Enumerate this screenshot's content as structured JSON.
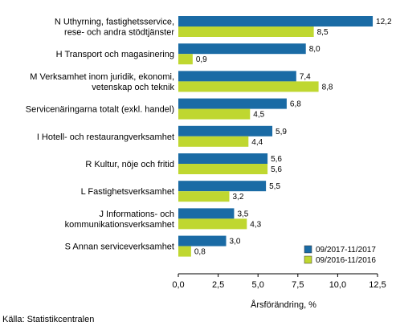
{
  "chart_data": {
    "type": "bar",
    "orientation": "horizontal",
    "categories": [
      "N Uthyrning, fastighetsservice,\nrese- och andra stödtjänster",
      "H Transport och magasinering",
      "M Verksamhet inom juridik, ekonomi,\nvetenskap och teknik",
      "Servicenäringarna totalt (exkl. handel)",
      "I Hotell- och restaurangverksamhet",
      "R Kultur, nöje och fritid",
      "L Fastighetsverksamhet",
      "J Informations- och\nkommunikationsverksamhet",
      "S Annan serviceverksamhet"
    ],
    "series": [
      {
        "name": "09/2017-11/2017",
        "color": "#1a6ba5",
        "values": [
          12.2,
          8.0,
          7.4,
          6.8,
          5.9,
          5.6,
          5.5,
          3.5,
          3.0
        ],
        "labels": [
          "12,2",
          "8,0",
          "7,4",
          "6,8",
          "5,9",
          "5,6",
          "5,5",
          "3,5",
          "3,0"
        ]
      },
      {
        "name": "09/2016-11/2016",
        "color": "#bfd730",
        "values": [
          8.5,
          0.9,
          8.8,
          4.5,
          4.4,
          5.6,
          3.2,
          4.3,
          0.8
        ],
        "labels": [
          "8,5",
          "0,9",
          "8,8",
          "4,5",
          "4,4",
          "5,6",
          "3,2",
          "4,3",
          "0,8"
        ]
      }
    ],
    "xlim": [
      0,
      12.5
    ],
    "xticks": [
      0,
      2.5,
      5,
      7.5,
      10,
      12.5
    ],
    "xtick_labels": [
      "0,0",
      "2,5",
      "5,0",
      "7,5",
      "10,0",
      "12,5"
    ],
    "xlabel": "Årsförändring, %",
    "ylabel": "",
    "title": "",
    "legend": "bottom-right",
    "grid": false
  },
  "source": "Källa: Statistikcentralen"
}
